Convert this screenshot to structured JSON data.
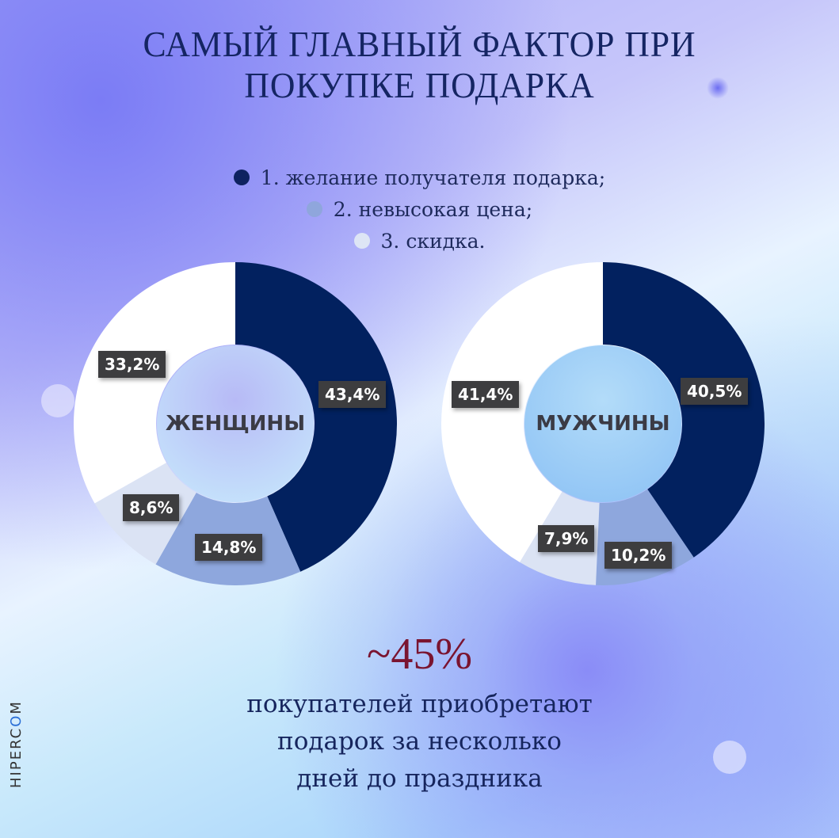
{
  "title": {
    "line1": "САМЫЙ ГЛАВНЫЙ ФАКТОР ПРИ",
    "line2": "ПОКУПКЕ ПОДАРКА"
  },
  "legend": [
    {
      "label": "1. желание получателя подарка;",
      "color": "#0e2260"
    },
    {
      "label": "2. невысокая цена;",
      "color": "#8fa6dc"
    },
    {
      "label": "3. скидка.",
      "color": "#dde5f5"
    }
  ],
  "colors": {
    "series1": "#02215f",
    "series2": "#8ea7dd",
    "series3": "#dbe3f4",
    "other": "#ffffff",
    "label_bg": "#3d3d3f",
    "accent_number": "#7a1430",
    "text_dark": "#16255d"
  },
  "charts": {
    "women": {
      "label": "ЖЕНЩИНЫ",
      "tags": [
        "43,4%",
        "14,8%",
        "8,6%",
        "33,2%"
      ]
    },
    "men": {
      "label": "МУЖЧИНЫ",
      "tags": [
        "40,5%",
        "10,2%",
        "7,9%",
        "41,4%"
      ]
    }
  },
  "chart_data": [
    {
      "type": "pie",
      "title": "ЖЕНЩИНЫ",
      "categories": [
        "желание получателя подарка",
        "невысокая цена",
        "скидка",
        "прочее"
      ],
      "values": [
        43.4,
        14.8,
        8.6,
        33.2
      ],
      "donut": true
    },
    {
      "type": "pie",
      "title": "МУЖЧИНЫ",
      "categories": [
        "желание получателя подарка",
        "невысокая цена",
        "скидка",
        "прочее"
      ],
      "values": [
        40.5,
        10.2,
        7.9,
        41.4
      ],
      "donut": true
    }
  ],
  "footer": {
    "big_number": "~45%",
    "line1": "покупателей приобретают",
    "line2": "подарок за несколько",
    "line3": "дней до праздника"
  },
  "brand": {
    "prefix": "HIPERC",
    "accent": "O",
    "suffix": "M"
  }
}
